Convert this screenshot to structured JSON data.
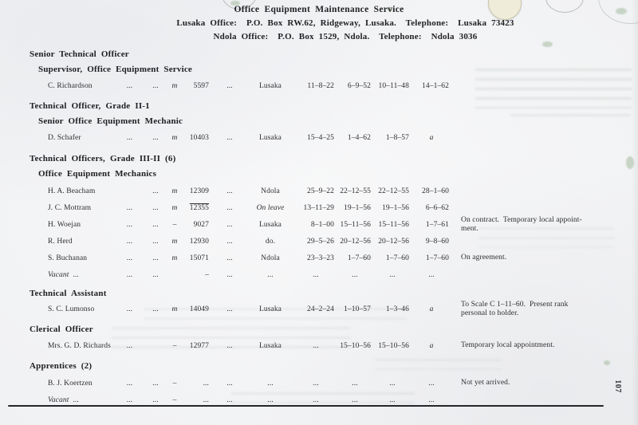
{
  "colors": {
    "paper": "#f0f1f3",
    "ink": "#2e2e32",
    "heading_ink": "#202024",
    "bleed_green": "#6c9462"
  },
  "header": {
    "title": "Office Equipment Maintenance Service",
    "lusaka_line": "Lusaka Office:  P.O. Box RW.62, Ridgeway, Lusaka.  Telephone:  Lusaka 73423",
    "ndola_line": "Ndola Office:  P.O. Box 1529, Ndola.  Telephone:  Ndola 3036"
  },
  "page_number": "107",
  "sections": [
    {
      "kind": "heading1",
      "text": "Senior Technical Officer"
    },
    {
      "kind": "heading2",
      "text": "Supervisor, Office Equipment Service"
    },
    {
      "kind": "table",
      "rows": [
        [
          "C. Richardson",
          "...",
          "...",
          "m",
          "5597",
          "...",
          "Lusaka",
          "11–8–22",
          "6–9–52",
          "10–11–48",
          "14–1–62",
          ""
        ]
      ]
    },
    {
      "kind": "heading1",
      "text": "Technical Officer, Grade II-1"
    },
    {
      "kind": "heading2",
      "text": "Senior Office Equipment Mechanic"
    },
    {
      "kind": "table",
      "rows": [
        [
          "D. Schafer",
          "...",
          "...",
          "m",
          "10403",
          "...",
          "Lusaka",
          "15–4–25",
          "1–4–62",
          "1–8–57",
          {
            "t": "a",
            "i": true
          },
          ""
        ]
      ]
    },
    {
      "kind": "heading1",
      "text": "Technical Officers, Grade III-II (6)"
    },
    {
      "kind": "heading2",
      "text": "Office Equipment Mechanics"
    },
    {
      "kind": "table",
      "rows": [
        [
          "H. A. Beacham",
          "",
          "...",
          "m",
          "12309",
          "...",
          "Ndola",
          "25–9–22",
          "22–12–55",
          "22–12–55",
          "28–1–60",
          ""
        ],
        [
          "J. C. Mottram",
          "...",
          "...",
          "m",
          {
            "t": "12355",
            "ol": true
          },
          "...",
          {
            "t": "On leave",
            "i": true
          },
          "13–11–29",
          "19–1–56",
          "19–1–56",
          "6–6–62",
          ""
        ],
        [
          "H. Woejan",
          "...",
          "...",
          "–",
          "9027",
          "...",
          "Lusaka",
          "8–1–00",
          "15–11–56",
          "15–11–56",
          "1–7–61",
          "On contract.  Temporary local appoint-\nment."
        ],
        [
          "R. Herd",
          "...",
          "...",
          "m",
          "12930",
          "...",
          "do.",
          "29–5–26",
          "20–12–56",
          "20–12–56",
          "9–8–60",
          ""
        ],
        [
          "S. Buchanan",
          "...",
          "...",
          "m",
          "15071",
          "...",
          "Ndola",
          "23–3–23",
          "1–7–60",
          "1–7–60",
          "1–7–60",
          "On agreement."
        ],
        [
          {
            "t": "Vacant",
            "i": true,
            "s": "  ..."
          },
          "...",
          "...",
          "",
          "–",
          "...",
          "...",
          "...",
          "...",
          "...",
          "...",
          ""
        ]
      ]
    },
    {
      "kind": "heading1",
      "text": "Technical Assistant"
    },
    {
      "kind": "table",
      "rows": [
        [
          "S. C. Lumonso",
          "...",
          "...",
          "m",
          "14049",
          "...",
          "Lusaka",
          "24–2–24",
          "1–10–57",
          "1–3–46",
          {
            "t": "a",
            "i": true
          },
          "To Scale C 1–11–60.  Present rank\npersonal to holder."
        ]
      ]
    },
    {
      "kind": "heading1",
      "text": "Clerical Officer"
    },
    {
      "kind": "table",
      "rows": [
        [
          "Mrs. G. D. Richards",
          "...",
          "",
          "–",
          "12977",
          "...",
          "Lusaka",
          "...",
          "15–10–56",
          "15–10–56",
          {
            "t": "a",
            "i": true
          },
          "Temporary local appointment."
        ]
      ]
    },
    {
      "kind": "heading1",
      "text": "Apprentices (2)"
    },
    {
      "kind": "table",
      "rows": [
        [
          "B. J. Koertzen",
          "...",
          "...",
          "–",
          "...",
          "...",
          "...",
          "...",
          "...",
          "...",
          "...",
          "Not yet arrived."
        ],
        [
          {
            "t": "Vacant",
            "i": true,
            "s": "  ..."
          },
          "...",
          "...",
          "–",
          "...",
          "...",
          "...",
          "...",
          "...",
          "...",
          "...",
          ""
        ]
      ]
    }
  ]
}
